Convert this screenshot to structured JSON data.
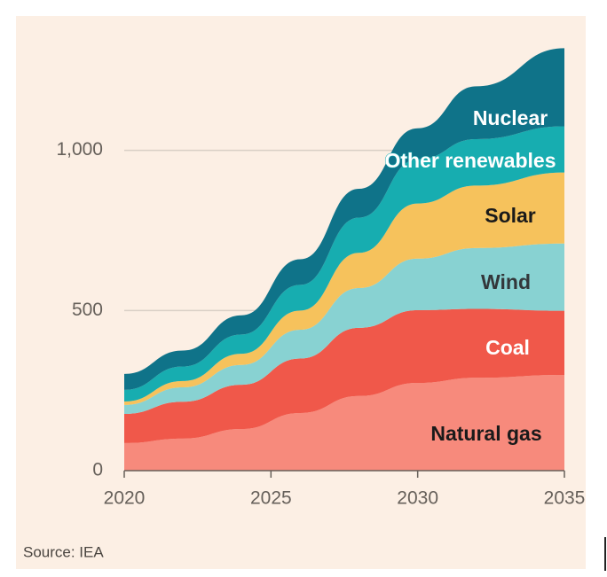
{
  "chart_data": {
    "type": "stacked_area",
    "source": "Source: IEA",
    "x": [
      2020,
      2022,
      2024,
      2026,
      2028,
      2030,
      2032,
      2035
    ],
    "series": [
      {
        "name": "Natural gas",
        "color": "#f78a7c",
        "values": [
          86,
          100,
          130,
          180,
          233,
          274,
          290,
          299
        ]
      },
      {
        "name": "Coal",
        "color": "#f0584a",
        "values": [
          91,
          115,
          138,
          170,
          213,
          227,
          215,
          200
        ]
      },
      {
        "name": "Wind",
        "color": "#88d2d2",
        "values": [
          28,
          45,
          62,
          90,
          124,
          161,
          190,
          210
        ]
      },
      {
        "name": "Solar",
        "color": "#f6c25c",
        "values": [
          11,
          20,
          35,
          60,
          110,
          172,
          195,
          222
        ]
      },
      {
        "name": "Other renewables",
        "color": "#17adb0",
        "values": [
          36,
          45,
          60,
          80,
          110,
          138,
          145,
          144
        ]
      },
      {
        "name": "Nuclear",
        "color": "#0f7389",
        "values": [
          50,
          50,
          60,
          80,
          90,
          97,
          165,
          244
        ]
      }
    ],
    "xlim": [
      2020,
      2035
    ],
    "xticks": [
      2020,
      2025,
      2030,
      2035
    ],
    "ylim": [
      0,
      1320
    ],
    "yticks": [
      0,
      500,
      {
        "value": 1000,
        "label": "1,000"
      }
    ],
    "grid": true
  }
}
